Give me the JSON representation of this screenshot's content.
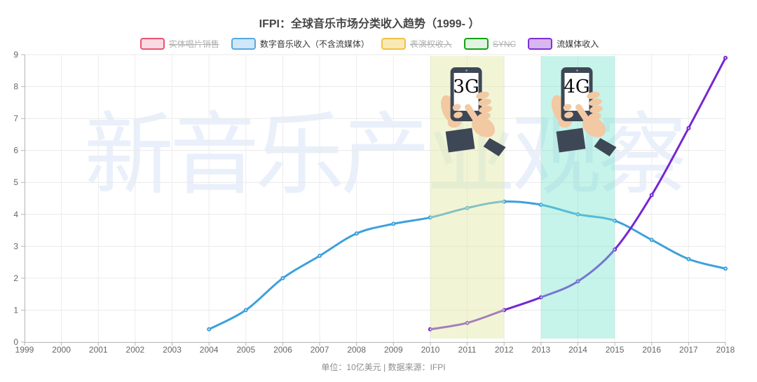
{
  "title": "IFPI：全球音乐市场分类收入趋势（1999- ）",
  "watermark": "新音乐产业观察",
  "watermark_color": "#e9f0fb",
  "footer": "单位：10亿美元 | 数据来源：IFPI",
  "legend": {
    "items": [
      {
        "label": "实体唱片销售",
        "color": "#e8536f",
        "fill": "#fadbe3",
        "active": false
      },
      {
        "label": "数字音乐收入（不含流媒体）",
        "color": "#57a8e2",
        "fill": "#cfe7f8",
        "active": true
      },
      {
        "label": "表演权收入",
        "color": "#f0c244",
        "fill": "#fbe9b5",
        "active": false
      },
      {
        "label": "SYNC",
        "color": "#12a312",
        "fill": "#e0f4e0",
        "active": false
      },
      {
        "label": "流媒体收入",
        "color": "#7e30d8",
        "fill": "#d8b6f0",
        "active": true
      }
    ]
  },
  "chart_data": {
    "type": "line",
    "x": [
      1999,
      2000,
      2001,
      2002,
      2003,
      2004,
      2005,
      2006,
      2007,
      2008,
      2009,
      2010,
      2011,
      2012,
      2013,
      2014,
      2015,
      2016,
      2017,
      2018
    ],
    "ylim": [
      0,
      9
    ],
    "grid": true,
    "legend_position": "top",
    "title": "IFPI：全球音乐市场分类收入趋势（1999- ）",
    "ylabel_unit": "10亿美元",
    "series": [
      {
        "name": "数字音乐收入（不含流媒体）",
        "color": "#3ca1dc",
        "values": [
          null,
          null,
          null,
          null,
          null,
          0.4,
          1.0,
          2.0,
          2.7,
          3.4,
          3.7,
          3.9,
          4.2,
          4.4,
          4.3,
          4.0,
          3.8,
          3.2,
          2.6,
          2.3
        ]
      },
      {
        "name": "流媒体收入",
        "color": "#7726d2",
        "values": [
          null,
          null,
          null,
          null,
          null,
          null,
          null,
          null,
          null,
          null,
          null,
          0.4,
          0.6,
          1.0,
          1.4,
          1.9,
          2.9,
          4.6,
          6.7,
          8.9
        ]
      }
    ],
    "bands": [
      {
        "label": "3G",
        "from": 2010,
        "to": 2012,
        "color": "rgba(223,233,162,0.45)"
      },
      {
        "label": "4G",
        "from": 2013,
        "to": 2015,
        "color": "rgba(120,226,205,0.42)"
      }
    ]
  }
}
